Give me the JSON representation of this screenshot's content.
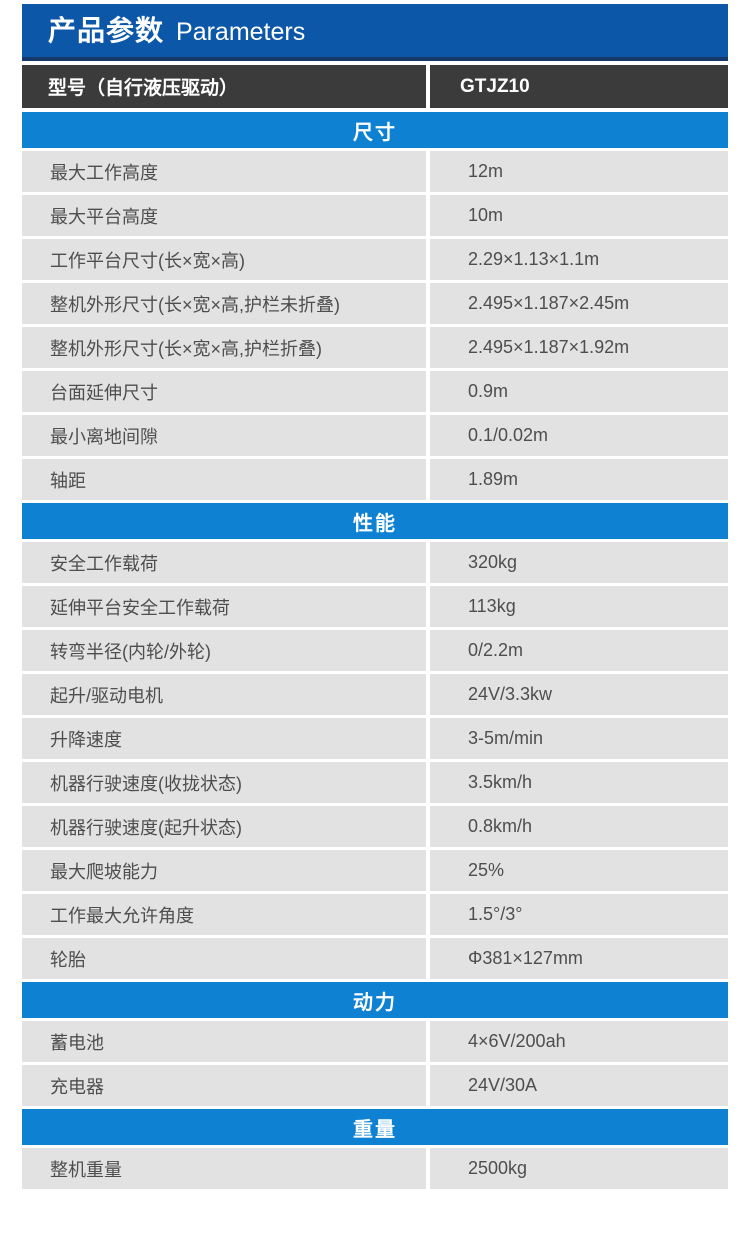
{
  "header": {
    "title_zh": "产品参数",
    "title_en": "Parameters"
  },
  "model_row": {
    "label": "型号（自行液压驱动）",
    "value": "GTJZ10"
  },
  "sections": [
    {
      "title": "尺寸",
      "rows": [
        {
          "label": "最大工作高度",
          "value": "12m"
        },
        {
          "label": "最大平台高度",
          "value": "10m"
        },
        {
          "label": "工作平台尺寸(长×宽×高)",
          "value": "2.29×1.13×1.1m"
        },
        {
          "label": "整机外形尺寸(长×宽×高,护栏未折叠)",
          "value": "2.495×1.187×2.45m"
        },
        {
          "label": "整机外形尺寸(长×宽×高,护栏折叠)",
          "value": "2.495×1.187×1.92m"
        },
        {
          "label": "台面延伸尺寸",
          "value": "0.9m"
        },
        {
          "label": "最小离地间隙",
          "value": "0.1/0.02m"
        },
        {
          "label": "轴距",
          "value": "1.89m"
        }
      ]
    },
    {
      "title": "性能",
      "rows": [
        {
          "label": "安全工作载荷",
          "value": "320kg"
        },
        {
          "label": "延伸平台安全工作载荷",
          "value": "113kg"
        },
        {
          "label": "转弯半径(内轮/外轮)",
          "value": "0/2.2m"
        },
        {
          "label": "起升/驱动电机",
          "value": "24V/3.3kw"
        },
        {
          "label": "升降速度",
          "value": "3-5m/min"
        },
        {
          "label": "机器行驶速度(收拢状态)",
          "value": "3.5km/h"
        },
        {
          "label": "机器行驶速度(起升状态)",
          "value": "0.8km/h"
        },
        {
          "label": "最大爬坡能力",
          "value": "25%"
        },
        {
          "label": "工作最大允许角度",
          "value": "1.5°/3°"
        },
        {
          "label": "轮胎",
          "value": "Φ381×127mm"
        }
      ]
    },
    {
      "title": "动力",
      "rows": [
        {
          "label": "蓄电池",
          "value": "4×6V/200ah"
        },
        {
          "label": "充电器",
          "value": "24V/30A"
        }
      ]
    },
    {
      "title": "重量",
      "rows": [
        {
          "label": "整机重量",
          "value": "2500kg"
        }
      ]
    }
  ],
  "colors": {
    "header_blue": "#0d57a8",
    "header_blue_dark": "#16386b",
    "section_blue": "#0e81d2",
    "model_row_bg": "#3b3b3b",
    "row_bg": "#e2e2e2",
    "row_text": "#4e4e4e"
  }
}
